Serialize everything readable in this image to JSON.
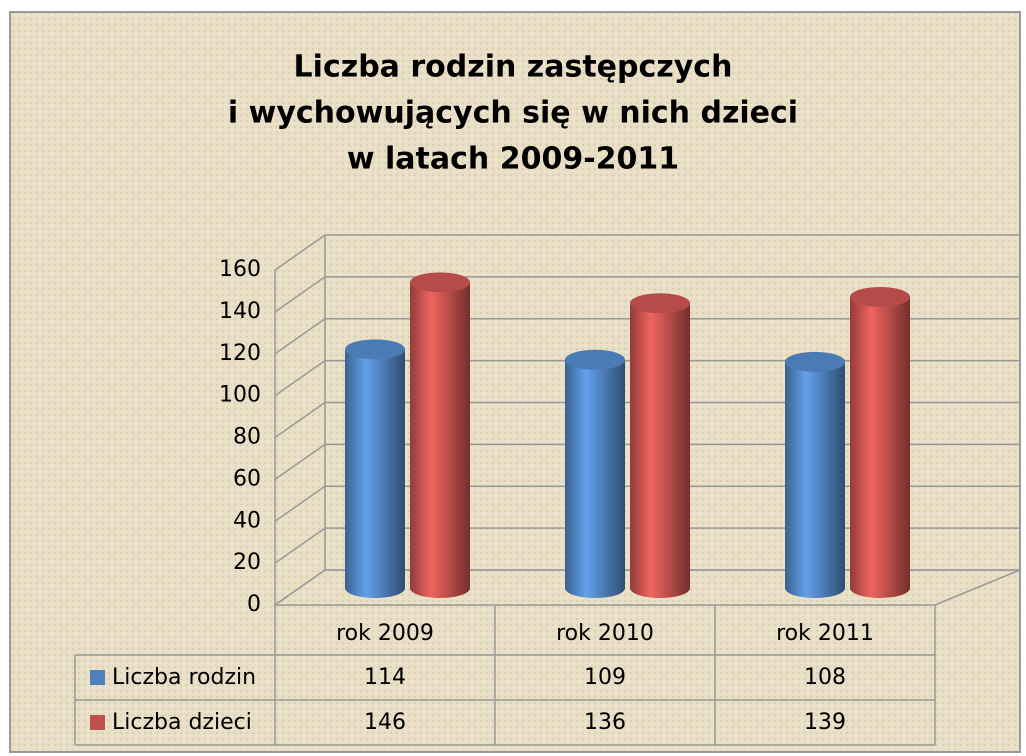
{
  "chart_data": {
    "type": "bar3d",
    "title": [
      "Liczba rodzin zastępczych",
      "i wychowujących się w nich dzieci",
      "w latach 2009-2011"
    ],
    "categories": [
      "rok 2009",
      "rok 2010",
      "rok 2011"
    ],
    "series": [
      {
        "name": "Liczba rodzin",
        "color": "#4f81bd",
        "values": [
          114,
          109,
          108
        ]
      },
      {
        "name": "Liczba dzieci",
        "color": "#c0504d",
        "values": [
          146,
          136,
          139
        ]
      }
    ],
    "ylim": [
      0,
      160
    ],
    "yticks": [
      0,
      20,
      40,
      60,
      80,
      100,
      120,
      140,
      160
    ],
    "grid": true,
    "legend": "table"
  }
}
